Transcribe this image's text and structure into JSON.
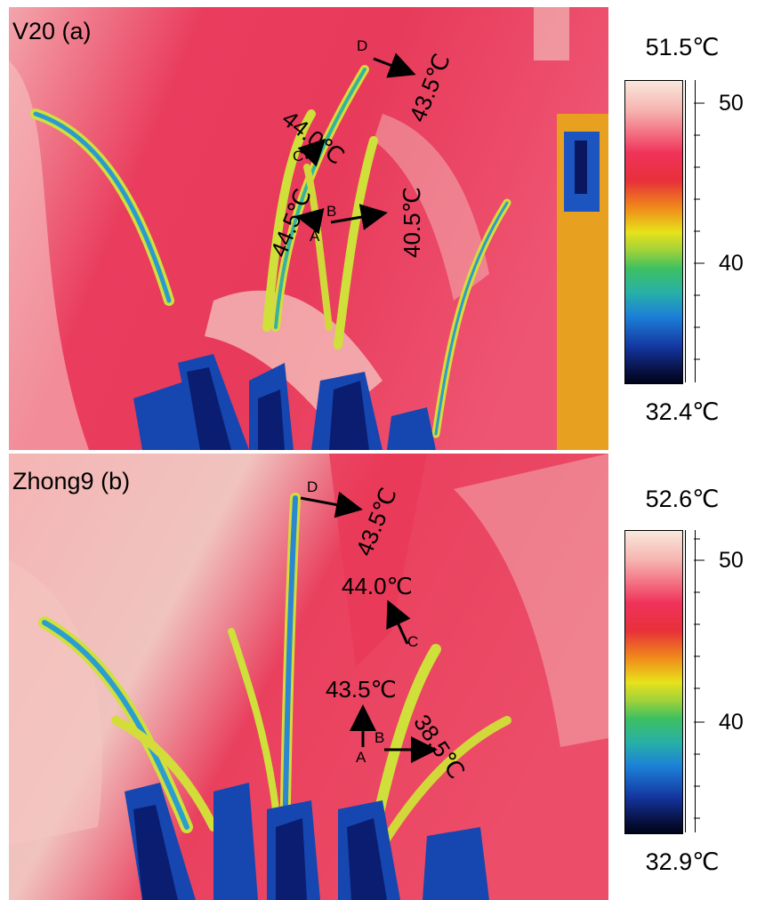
{
  "panels": [
    {
      "title": "V20 (a)",
      "scale_max": "51.5℃",
      "scale_min": "32.4℃",
      "scale_ticks": [
        "50",
        "40"
      ],
      "points": {
        "A": "A",
        "B": "B",
        "C": "C",
        "D": "D"
      },
      "temps": {
        "A": "44.5℃",
        "B": "40.5℃",
        "C": "44.0℃",
        "D": "43.5℃"
      }
    },
    {
      "title": "Zhong9 (b)",
      "scale_max": "52.6℃",
      "scale_min": "32.9℃",
      "scale_ticks": [
        "50",
        "40"
      ],
      "points": {
        "A": "A",
        "B": "B",
        "C": "C",
        "D": "D"
      },
      "temps": {
        "A": "43.5℃",
        "B": "38.5℃",
        "C": "44.0℃",
        "D": "43.5℃"
      }
    }
  ],
  "colors": {
    "background": "#ea3c5c",
    "hot": "#f7cfc4",
    "plant_cool": "#1f5fc8",
    "plant_cold": "#0a1a66",
    "plant_warm": "#d2d83a"
  }
}
